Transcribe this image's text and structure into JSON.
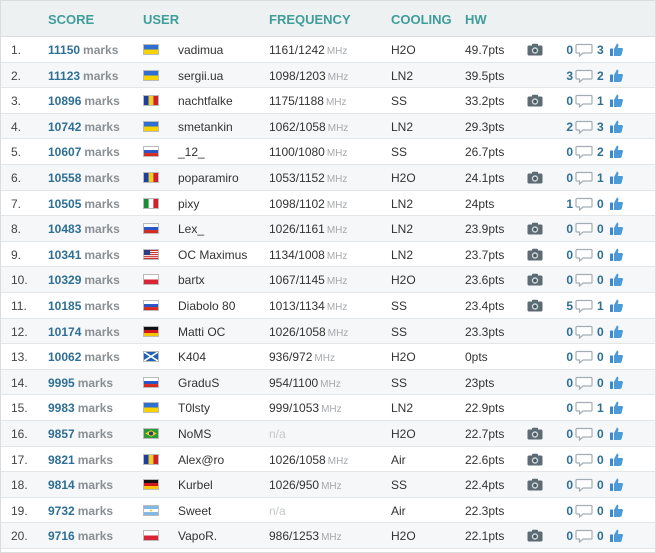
{
  "headers": {
    "score": "SCORE",
    "user": "USER",
    "frequency": "FREQUENCY",
    "cooling": "COOLING",
    "hw": "HW"
  },
  "marks_label": "marks",
  "mhz_label": "MHz",
  "rows": [
    {
      "rank": "1.",
      "score": "11150",
      "flag": "ua",
      "user": "vadimua",
      "freq": "1161/1242",
      "na": false,
      "cooling": "H2O",
      "hw": "49.7pts",
      "camera": true,
      "comments": "0",
      "likes": "3"
    },
    {
      "rank": "2.",
      "score": "11123",
      "flag": "ua",
      "user": "sergii.ua",
      "freq": "1098/1203",
      "na": false,
      "cooling": "LN2",
      "hw": "39.5pts",
      "camera": false,
      "comments": "3",
      "likes": "2"
    },
    {
      "rank": "3.",
      "score": "10896",
      "flag": "ro",
      "user": "nachtfalke",
      "freq": "1175/1188",
      "na": false,
      "cooling": "SS",
      "hw": "33.2pts",
      "camera": true,
      "comments": "0",
      "likes": "1"
    },
    {
      "rank": "4.",
      "score": "10742",
      "flag": "ua",
      "user": "smetankin",
      "freq": "1062/1058",
      "na": false,
      "cooling": "LN2",
      "hw": "29.3pts",
      "camera": false,
      "comments": "2",
      "likes": "3"
    },
    {
      "rank": "5.",
      "score": "10607",
      "flag": "ru",
      "user": "_12_",
      "freq": "1100/1080",
      "na": false,
      "cooling": "SS",
      "hw": "26.7pts",
      "camera": false,
      "comments": "0",
      "likes": "2"
    },
    {
      "rank": "6.",
      "score": "10558",
      "flag": "ro",
      "user": "poparamiro",
      "freq": "1053/1152",
      "na": false,
      "cooling": "H2O",
      "hw": "24.1pts",
      "camera": true,
      "comments": "0",
      "likes": "1"
    },
    {
      "rank": "7.",
      "score": "10505",
      "flag": "it",
      "user": "pixy",
      "freq": "1098/1102",
      "na": false,
      "cooling": "LN2",
      "hw": "24pts",
      "camera": false,
      "comments": "1",
      "likes": "0"
    },
    {
      "rank": "8.",
      "score": "10483",
      "flag": "ru",
      "user": "Lex_",
      "freq": "1026/1161",
      "na": false,
      "cooling": "LN2",
      "hw": "23.9pts",
      "camera": true,
      "comments": "0",
      "likes": "0"
    },
    {
      "rank": "9.",
      "score": "10341",
      "flag": "us",
      "user": "OC Maximus",
      "freq": "1134/1008",
      "na": false,
      "cooling": "LN2",
      "hw": "23.7pts",
      "camera": true,
      "comments": "0",
      "likes": "0"
    },
    {
      "rank": "10.",
      "score": "10329",
      "flag": "pl",
      "user": "bartx",
      "freq": "1067/1145",
      "na": false,
      "cooling": "H2O",
      "hw": "23.6pts",
      "camera": true,
      "comments": "0",
      "likes": "0"
    },
    {
      "rank": "11.",
      "score": "10185",
      "flag": "ru",
      "user": "Diabolo 80",
      "freq": "1013/1134",
      "na": false,
      "cooling": "SS",
      "hw": "23.4pts",
      "camera": true,
      "comments": "5",
      "likes": "1"
    },
    {
      "rank": "12.",
      "score": "10174",
      "flag": "de",
      "user": "Matti OC",
      "freq": "1026/1058",
      "na": false,
      "cooling": "SS",
      "hw": "23.3pts",
      "camera": false,
      "comments": "0",
      "likes": "0"
    },
    {
      "rank": "13.",
      "score": "10062",
      "flag": "sc",
      "user": "K404",
      "freq": "936/972",
      "na": false,
      "cooling": "H2O",
      "hw": "0pts",
      "camera": false,
      "comments": "0",
      "likes": "0"
    },
    {
      "rank": "14.",
      "score": "9995",
      "flag": "ru",
      "user": "GraduS",
      "freq": "954/1100",
      "na": false,
      "cooling": "SS",
      "hw": "23pts",
      "camera": false,
      "comments": "0",
      "likes": "0"
    },
    {
      "rank": "15.",
      "score": "9983",
      "flag": "ua",
      "user": "T0lsty",
      "freq": "999/1053",
      "na": false,
      "cooling": "LN2",
      "hw": "22.9pts",
      "camera": false,
      "comments": "0",
      "likes": "1"
    },
    {
      "rank": "16.",
      "score": "9857",
      "flag": "br",
      "user": "NoMS",
      "freq": "n/a",
      "na": true,
      "cooling": "H2O",
      "hw": "22.7pts",
      "camera": true,
      "comments": "0",
      "likes": "0"
    },
    {
      "rank": "17.",
      "score": "9821",
      "flag": "ro",
      "user": "Alex@ro",
      "freq": "1026/1058",
      "na": false,
      "cooling": "Air",
      "hw": "22.6pts",
      "camera": true,
      "comments": "0",
      "likes": "0"
    },
    {
      "rank": "18.",
      "score": "9814",
      "flag": "de",
      "user": "Kurbel",
      "freq": "1026/950",
      "na": false,
      "cooling": "SS",
      "hw": "22.4pts",
      "camera": true,
      "comments": "0",
      "likes": "0"
    },
    {
      "rank": "19.",
      "score": "9732",
      "flag": "ar",
      "user": "Sweet",
      "freq": "n/a",
      "na": true,
      "cooling": "Air",
      "hw": "22.3pts",
      "camera": false,
      "comments": "0",
      "likes": "0"
    },
    {
      "rank": "20.",
      "score": "9716",
      "flag": "pl",
      "user": "VapoR.",
      "freq": "986/1253",
      "na": false,
      "cooling": "H2O",
      "hw": "22.1pts",
      "camera": true,
      "comments": "0",
      "likes": "0"
    }
  ],
  "colors": {
    "header_text": "#3f9d9a",
    "score_text": "#2e6f93",
    "marks_text": "#8a8f93",
    "row_alt": "#f5f7f8"
  }
}
